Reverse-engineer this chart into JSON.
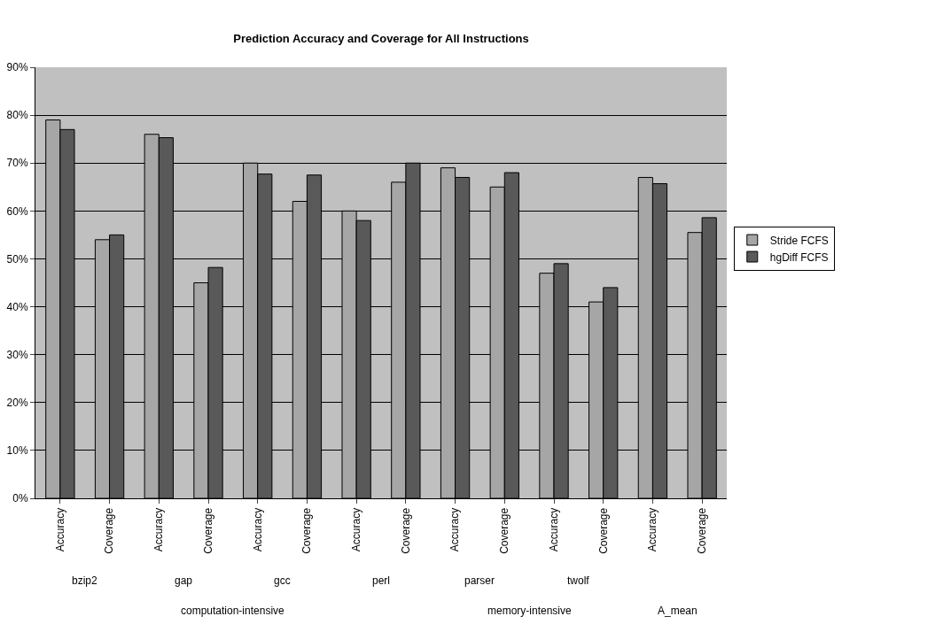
{
  "chart_data": {
    "type": "bar",
    "title": "Prediction Accuracy and Coverage for All Instructions",
    "categories": [
      "Accuracy",
      "Coverage",
      "Accuracy",
      "Coverage",
      "Accuracy",
      "Coverage",
      "Accuracy",
      "Coverage",
      "Accuracy",
      "Coverage",
      "Accuracy",
      "Coverage",
      "Accuracy",
      "Coverage"
    ],
    "series": [
      {
        "name": "Stride FCFS",
        "color": "#a6a6a6",
        "values": [
          79,
          54,
          76,
          45,
          70,
          62,
          60,
          66,
          69,
          65,
          47,
          41,
          67,
          55.5
        ]
      },
      {
        "name": "hgDiff FCFS",
        "color": "#595959",
        "values": [
          77,
          55,
          75.3,
          48.2,
          67.7,
          67.5,
          58,
          70,
          67,
          68,
          49,
          44,
          65.7,
          58.6
        ]
      }
    ],
    "annotations": [
      "bzip2",
      "gap",
      "gcc",
      "perl",
      "parser",
      "twolf",
      "computation-intensive",
      "memory-intensive",
      "A_mean"
    ],
    "ylim": [
      0,
      90
    ],
    "yticks": [
      {
        "value": 0,
        "label": "0%"
      },
      {
        "value": 10,
        "label": "10%"
      },
      {
        "value": 20,
        "label": "20%"
      },
      {
        "value": 30,
        "label": "30%"
      },
      {
        "value": 40,
        "label": "40%"
      },
      {
        "value": 50,
        "label": "50%"
      },
      {
        "value": 60,
        "label": "60%"
      },
      {
        "value": 70,
        "label": "70%"
      },
      {
        "value": 80,
        "label": "80%"
      },
      {
        "value": 90,
        "label": "90%"
      }
    ],
    "grid": "y",
    "legend": "right"
  }
}
